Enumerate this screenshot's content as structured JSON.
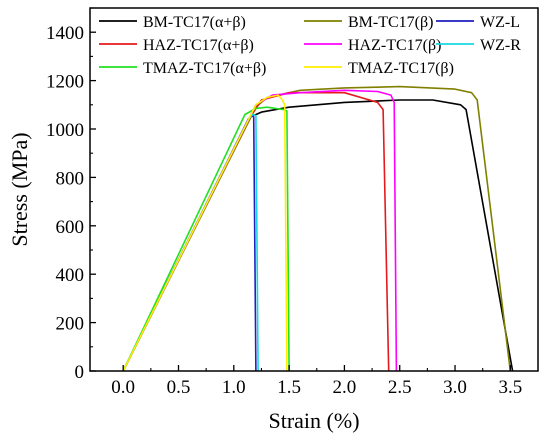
{
  "chart_data": {
    "type": "line",
    "title": "",
    "xlabel": "Strain (%)",
    "ylabel": "Stress (MPa)",
    "xlim": [
      -0.3,
      3.75
    ],
    "ylim": [
      0,
      1500
    ],
    "xticks": [
      0.0,
      0.5,
      1.0,
      1.5,
      2.0,
      2.5,
      3.0,
      3.5
    ],
    "xtick_labels": [
      "0.0",
      "0.5",
      "1.0",
      "1.5",
      "2.0",
      "2.5",
      "3.0",
      "3.5"
    ],
    "yticks": [
      0,
      200,
      400,
      600,
      800,
      1000,
      1200,
      1400
    ],
    "ytick_labels": [
      "0",
      "200",
      "400",
      "600",
      "800",
      "1000",
      "1200",
      "1400"
    ],
    "grid": false,
    "legend_position": "top",
    "series": [
      {
        "name": "BM-TC17(α+β)",
        "color": "#000000",
        "x": [
          0.0,
          1.15,
          1.25,
          1.5,
          2.0,
          2.5,
          2.8,
          3.05,
          3.1,
          3.52
        ],
        "y": [
          0,
          1050,
          1070,
          1090,
          1110,
          1120,
          1120,
          1100,
          1080,
          0
        ]
      },
      {
        "name": "BM-TC17(β)",
        "color": "#808000",
        "x": [
          0.0,
          1.2,
          1.3,
          1.6,
          2.0,
          2.5,
          3.0,
          3.15,
          3.2,
          3.5
        ],
        "y": [
          0,
          1090,
          1130,
          1160,
          1170,
          1175,
          1165,
          1150,
          1120,
          0
        ]
      },
      {
        "name": "WZ-L",
        "color": "#1f1fbf",
        "x": [
          0.0,
          1.13,
          1.16,
          1.18,
          1.2
        ],
        "y": [
          0,
          1040,
          1055,
          1050,
          0
        ]
      },
      {
        "name": "HAZ-TC17(α+β)",
        "color": "#e41a1c",
        "x": [
          0.0,
          1.15,
          1.25,
          1.5,
          2.0,
          2.3,
          2.35,
          2.4
        ],
        "y": [
          0,
          1050,
          1120,
          1150,
          1150,
          1110,
          1080,
          0
        ]
      },
      {
        "name": "HAZ-TC17(β)",
        "color": "#ff00ff",
        "x": [
          0.0,
          1.2,
          1.35,
          1.6,
          2.0,
          2.3,
          2.42,
          2.45,
          2.47
        ],
        "y": [
          0,
          1100,
          1140,
          1150,
          1160,
          1155,
          1140,
          1110,
          0
        ]
      },
      {
        "name": "WZ-R",
        "color": "#17d7e0",
        "x": [
          0.0,
          1.14,
          1.17,
          1.2,
          1.22
        ],
        "y": [
          0,
          1045,
          1060,
          1055,
          0
        ]
      },
      {
        "name": "TMAZ-TC17(α+β)",
        "color": "#22e022",
        "x": [
          0.0,
          1.1,
          1.2,
          1.3,
          1.45,
          1.48,
          1.5
        ],
        "y": [
          0,
          1060,
          1085,
          1090,
          1080,
          1075,
          0
        ]
      },
      {
        "name": "TMAZ-TC17(β)",
        "color": "#ffee00",
        "x": [
          0.0,
          1.2,
          1.3,
          1.4,
          1.44,
          1.46,
          1.48
        ],
        "y": [
          0,
          1100,
          1130,
          1140,
          1120,
          1100,
          0
        ]
      }
    ]
  }
}
